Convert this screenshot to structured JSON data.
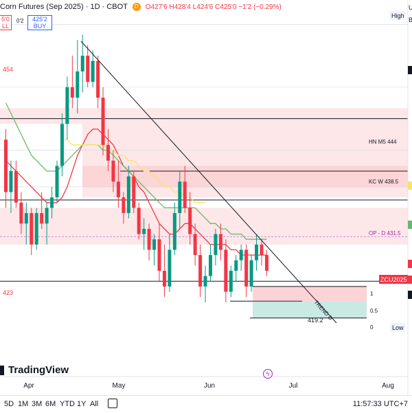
{
  "header": {
    "symbol": "Corn Futures (Sep 2025) · 1D · CBOT",
    "badge": "D",
    "ohlc": "O427'6 H428'4 L424'6 C425'0 −1'2 (−0.29%)"
  },
  "trade": {
    "sell_price": "5'0",
    "sell_label": "LL",
    "spread": "0'2",
    "buy_price": "425'2",
    "buy_label": "BUY"
  },
  "price_axis": {
    "high_tag": "High",
    "low_tag": "Low",
    "top_letters": [
      "U",
      "B"
    ]
  },
  "levels": [
    {
      "label": "454",
      "price": 454
    },
    {
      "label": "HN M5 444",
      "price": 444
    },
    {
      "label": "KC W 438.5",
      "price": 438.5
    },
    {
      "label": "OP - D 431.5",
      "price": 431.5
    },
    {
      "label": "423",
      "price": 423
    },
    {
      "label": "419.2",
      "price": 419.2
    }
  ],
  "fib_labels": [
    "1",
    "0.5",
    "0"
  ],
  "ticker_tag": "ZCU2025",
  "trend_label": "TREND D",
  "time_axis": [
    "Apr",
    "May",
    "Jun",
    "Jul",
    "Aug"
  ],
  "timeframes": [
    "5D",
    "1M",
    "3M",
    "6M",
    "YTD",
    "1Y",
    "All"
  ],
  "clock": "11:57:33 UTC+7",
  "logo": "TradingView",
  "chart_data": {
    "type": "candlestick",
    "symbol": "ZCU2025",
    "bullish_color": "#089981",
    "bearish_color": "#f23645",
    "ylim": [
      414,
      474
    ],
    "candles": [
      {
        "o": 450,
        "h": 452,
        "l": 437,
        "c": 440
      },
      {
        "o": 440,
        "h": 446,
        "l": 436,
        "c": 444
      },
      {
        "o": 444,
        "h": 446,
        "l": 437,
        "c": 438
      },
      {
        "o": 438,
        "h": 440,
        "l": 432,
        "c": 434
      },
      {
        "o": 434,
        "h": 438,
        "l": 430,
        "c": 436
      },
      {
        "o": 436,
        "h": 437,
        "l": 428,
        "c": 430
      },
      {
        "o": 430,
        "h": 437,
        "l": 429,
        "c": 436
      },
      {
        "o": 436,
        "h": 440,
        "l": 433,
        "c": 434
      },
      {
        "o": 434,
        "h": 438,
        "l": 430,
        "c": 437
      },
      {
        "o": 437,
        "h": 441,
        "l": 435,
        "c": 439
      },
      {
        "o": 439,
        "h": 446,
        "l": 438,
        "c": 445
      },
      {
        "o": 445,
        "h": 455,
        "l": 443,
        "c": 453
      },
      {
        "o": 453,
        "h": 462,
        "l": 450,
        "c": 460
      },
      {
        "o": 460,
        "h": 466,
        "l": 456,
        "c": 458
      },
      {
        "o": 458,
        "h": 469,
        "l": 455,
        "c": 463
      },
      {
        "o": 463,
        "h": 470,
        "l": 459,
        "c": 466
      },
      {
        "o": 466,
        "h": 468,
        "l": 460,
        "c": 461
      },
      {
        "o": 461,
        "h": 467,
        "l": 460,
        "c": 465
      },
      {
        "o": 465,
        "h": 466,
        "l": 456,
        "c": 458
      },
      {
        "o": 458,
        "h": 460,
        "l": 447,
        "c": 449
      },
      {
        "o": 449,
        "h": 452,
        "l": 444,
        "c": 446
      },
      {
        "o": 446,
        "h": 448,
        "l": 440,
        "c": 442
      },
      {
        "o": 442,
        "h": 446,
        "l": 437,
        "c": 439
      },
      {
        "o": 439,
        "h": 440,
        "l": 434,
        "c": 436
      },
      {
        "o": 436,
        "h": 445,
        "l": 435,
        "c": 443
      },
      {
        "o": 443,
        "h": 444,
        "l": 436,
        "c": 437
      },
      {
        "o": 437,
        "h": 438,
        "l": 431,
        "c": 432
      },
      {
        "o": 432,
        "h": 435,
        "l": 429,
        "c": 433
      },
      {
        "o": 433,
        "h": 434,
        "l": 427,
        "c": 429
      },
      {
        "o": 429,
        "h": 432,
        "l": 426,
        "c": 431
      },
      {
        "o": 431,
        "h": 434,
        "l": 423,
        "c": 425
      },
      {
        "o": 425,
        "h": 430,
        "l": 420,
        "c": 422
      },
      {
        "o": 422,
        "h": 432,
        "l": 421,
        "c": 429
      },
      {
        "o": 429,
        "h": 438,
        "l": 428,
        "c": 436
      },
      {
        "o": 436,
        "h": 444,
        "l": 433,
        "c": 442
      },
      {
        "o": 442,
        "h": 445,
        "l": 436,
        "c": 437
      },
      {
        "o": 437,
        "h": 440,
        "l": 430,
        "c": 432
      },
      {
        "o": 432,
        "h": 434,
        "l": 426,
        "c": 428
      },
      {
        "o": 428,
        "h": 430,
        "l": 420,
        "c": 422
      },
      {
        "o": 422,
        "h": 426,
        "l": 419,
        "c": 424
      },
      {
        "o": 424,
        "h": 430,
        "l": 423,
        "c": 428
      },
      {
        "o": 428,
        "h": 433,
        "l": 426,
        "c": 432
      },
      {
        "o": 432,
        "h": 434,
        "l": 427,
        "c": 429
      },
      {
        "o": 429,
        "h": 431,
        "l": 419,
        "c": 421
      },
      {
        "o": 421,
        "h": 426,
        "l": 420,
        "c": 425
      },
      {
        "o": 425,
        "h": 428,
        "l": 423,
        "c": 427
      },
      {
        "o": 427,
        "h": 430,
        "l": 425,
        "c": 429
      },
      {
        "o": 429,
        "h": 430,
        "l": 420,
        "c": 422
      },
      {
        "o": 422,
        "h": 428,
        "l": 421,
        "c": 427
      },
      {
        "o": 427,
        "h": 432,
        "l": 425,
        "c": 430
      },
      {
        "o": 430,
        "h": 431,
        "l": 426,
        "c": 428
      },
      {
        "o": 428,
        "h": 429,
        "l": 424,
        "c": 425
      }
    ],
    "moving_averages": [
      {
        "color": "#f23645",
        "values": [
          446,
          445,
          444,
          443,
          442,
          441,
          440,
          439,
          438,
          438,
          438,
          439,
          441,
          444,
          447,
          449,
          451,
          452,
          452,
          451,
          450,
          449,
          447,
          445,
          444,
          443,
          441,
          440,
          438,
          436,
          434,
          433,
          432,
          432,
          433,
          434,
          434,
          433,
          432,
          431,
          430,
          430,
          430,
          430,
          429,
          429,
          428,
          428,
          428,
          428,
          428,
          428
        ]
      },
      {
        "color": "#66bb6a",
        "values": [
          457,
          455,
          453,
          451,
          449,
          447,
          446,
          445,
          444,
          444,
          444,
          445,
          446,
          447,
          448,
          449,
          449,
          449,
          449,
          448,
          448,
          447,
          446,
          445,
          444,
          443,
          442,
          441,
          440,
          439,
          438,
          437,
          437,
          437,
          437,
          437,
          437,
          437,
          436,
          435,
          434,
          434,
          433,
          433,
          432,
          432,
          432,
          431,
          431,
          431,
          431,
          431
        ]
      },
      {
        "color": "#f5e663",
        "values": [
          null,
          null,
          null,
          null,
          null,
          null,
          null,
          null,
          null,
          null,
          null,
          450,
          450,
          449,
          449,
          449,
          449,
          449,
          449,
          449,
          448,
          448,
          447,
          447,
          446,
          446,
          445,
          444,
          444,
          443,
          442,
          441,
          441,
          440,
          440,
          439,
          439,
          438,
          438,
          438,
          null,
          null,
          null,
          null,
          null,
          null,
          null,
          null,
          null,
          null,
          null,
          null
        ]
      }
    ],
    "zones": [
      {
        "from": 453,
        "to": 456
      },
      {
        "from": 439,
        "to": 453
      },
      {
        "from": 441,
        "to": 445
      },
      {
        "from": 430,
        "to": 437
      }
    ],
    "position_tool": {
      "stop_from": 422,
      "stop_to": 419.2,
      "target_from": 419.2,
      "target_to": 416
    }
  }
}
